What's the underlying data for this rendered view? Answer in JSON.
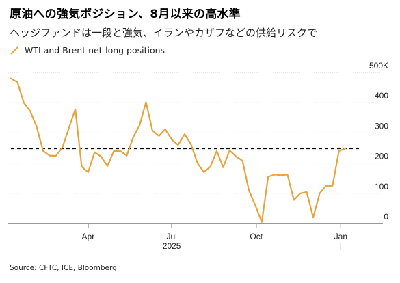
{
  "title": "原油への強気ポジション、8月以来の高水準",
  "subtitle": "ヘッジファンドは一段と強気、イランやカザフなどの供給リスクで",
  "legend": {
    "label": "WTI and Brent net-long positions",
    "color": "#e8a33c"
  },
  "source": "Source: CFTC, ICE, Bloomberg",
  "chart_data": {
    "type": "line",
    "series": [
      {
        "color": "#e8a33c",
        "x": [
          "2025-01-07",
          "2025-01-14",
          "2025-01-21",
          "2025-01-28",
          "2025-02-04",
          "2025-02-11",
          "2025-02-18",
          "2025-02-25",
          "2025-03-04",
          "2025-03-11",
          "2025-03-18",
          "2025-03-25",
          "2025-04-01",
          "2025-04-08",
          "2025-04-15",
          "2025-04-22",
          "2025-04-29",
          "2025-05-06",
          "2025-05-13",
          "2025-05-20",
          "2025-05-27",
          "2025-06-03",
          "2025-06-10",
          "2025-06-17",
          "2025-06-24",
          "2025-07-01",
          "2025-07-08",
          "2025-07-15",
          "2025-07-22",
          "2025-07-29",
          "2025-08-05",
          "2025-08-12",
          "2025-08-19",
          "2025-08-26",
          "2025-09-02",
          "2025-09-09",
          "2025-09-16",
          "2025-09-23",
          "2025-09-30",
          "2025-10-07",
          "2025-10-14",
          "2025-10-21",
          "2025-10-28",
          "2025-11-04",
          "2025-11-11",
          "2025-11-18",
          "2025-11-25",
          "2025-12-02",
          "2025-12-09",
          "2025-12-16",
          "2025-12-23",
          "2025-12-30",
          "2026-01-06",
          "2026-01-13",
          "2026-01-20"
        ],
        "values": [
          480,
          468,
          400,
          372,
          320,
          240,
          225,
          224,
          252,
          316,
          378,
          188,
          170,
          236,
          222,
          190,
          240,
          240,
          225,
          285,
          325,
          402,
          308,
          290,
          312,
          278,
          260,
          296,
          262,
          200,
          170,
          188,
          240,
          186,
          242,
          222,
          208,
          110,
          60,
          5,
          155,
          162,
          160,
          162,
          78,
          100,
          104,
          20,
          100,
          125,
          125,
          240,
          248,
          null,
          null
        ]
      }
    ],
    "x_ticks": [
      {
        "date": "2025-04-01",
        "label": "Apr"
      },
      {
        "date": "2025-07-01",
        "label": "Jul"
      },
      {
        "date": "2025-10-01",
        "label": "Oct"
      },
      {
        "date": "2026-01-01",
        "label": "Jan"
      }
    ],
    "year_label": "2025",
    "y_ticks": [
      0,
      100,
      200,
      300,
      400,
      500
    ],
    "y_tick_labels": [
      "0",
      "100",
      "200",
      "300",
      "400",
      "500K"
    ],
    "ylim": [
      0,
      500
    ],
    "xlim": [
      "2025-01-04",
      "2026-02-01"
    ],
    "reference_line": {
      "value": 248,
      "style": "dashed"
    },
    "grid": "horizontal",
    "legend_position": "top-left"
  }
}
